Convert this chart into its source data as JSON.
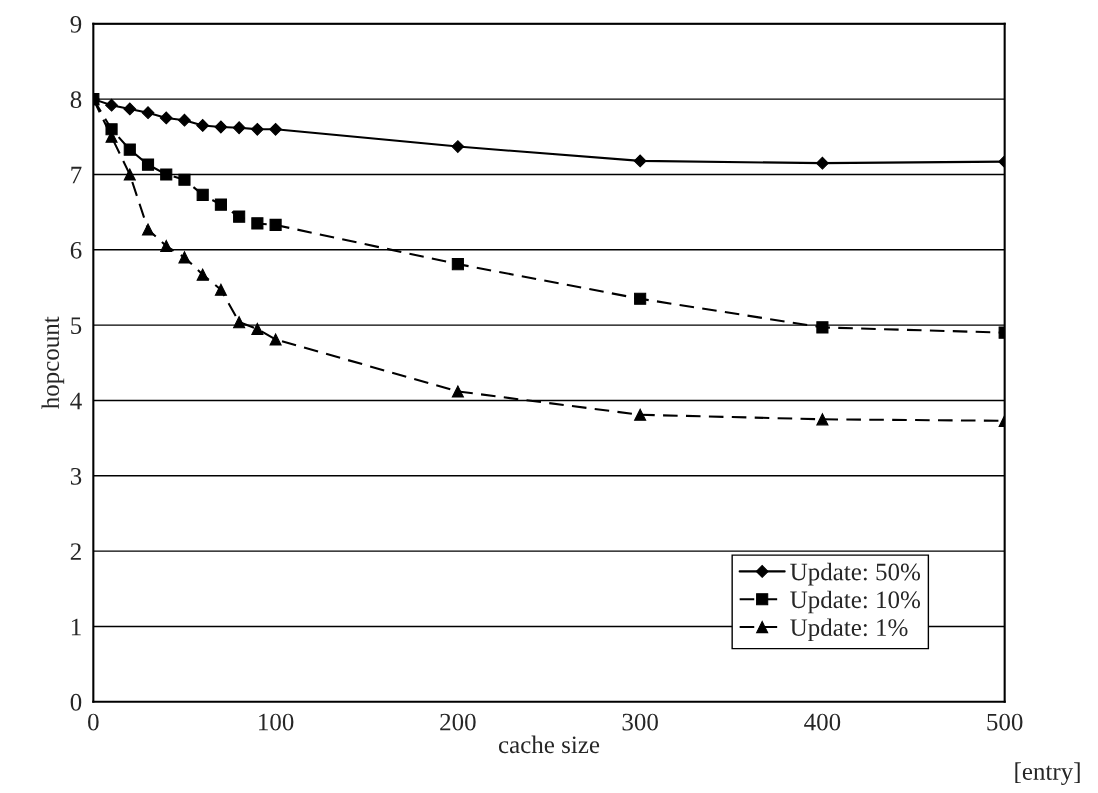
{
  "chart_data": {
    "type": "line",
    "xlabel": "cache size",
    "ylabel": "hopcount",
    "annotations": [
      "[entry]"
    ],
    "x": [
      0,
      10,
      20,
      30,
      40,
      50,
      60,
      70,
      80,
      90,
      100,
      200,
      300,
      400,
      500
    ],
    "series": [
      {
        "name": "Update: 50%",
        "color": "#000000",
        "marker": "diamond",
        "line_style": "solid",
        "values": [
          8.0,
          7.92,
          7.87,
          7.82,
          7.75,
          7.72,
          7.65,
          7.63,
          7.62,
          7.6,
          7.6,
          7.37,
          7.18,
          7.15,
          7.17
        ]
      },
      {
        "name": "Update: 10%",
        "color": "#000000",
        "marker": "square",
        "line_style": "dashed",
        "values": [
          8.0,
          7.6,
          7.33,
          7.13,
          7.0,
          6.93,
          6.73,
          6.6,
          6.44,
          6.35,
          6.33,
          5.81,
          5.35,
          4.97,
          4.9
        ]
      },
      {
        "name": "Update: 1%",
        "color": "#000000",
        "marker": "triangle",
        "line_style": "dashed",
        "values": [
          8.0,
          7.5,
          7.0,
          6.27,
          6.05,
          5.9,
          5.67,
          5.47,
          5.04,
          4.95,
          4.81,
          4.12,
          3.81,
          3.75,
          3.73
        ]
      }
    ],
    "xlim": [
      0,
      500
    ],
    "xticks": [
      0,
      100,
      200,
      300,
      400,
      500
    ],
    "ylim": [
      0,
      9
    ],
    "yticks": [
      0,
      1,
      2,
      3,
      4,
      5,
      6,
      7,
      8,
      9
    ],
    "grid": "y",
    "legend": "bottom right"
  }
}
